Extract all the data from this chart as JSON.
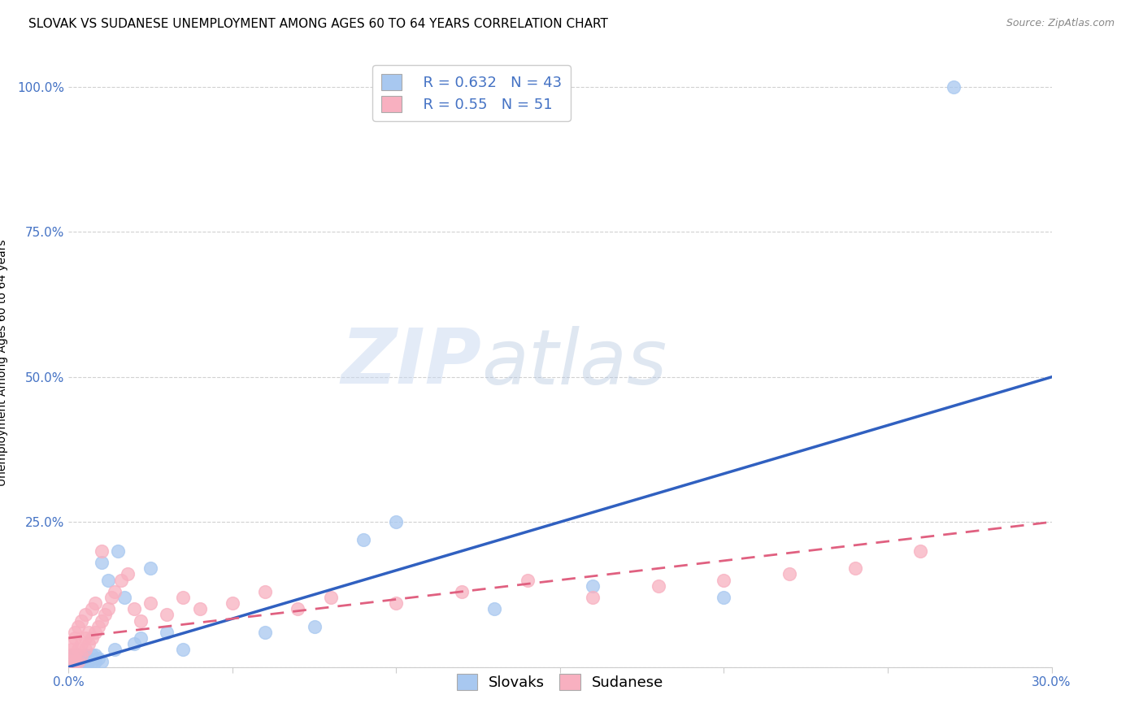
{
  "title": "SLOVAK VS SUDANESE UNEMPLOYMENT AMONG AGES 60 TO 64 YEARS CORRELATION CHART",
  "source": "Source: ZipAtlas.com",
  "ylabel": "Unemployment Among Ages 60 to 64 years",
  "xlim": [
    0.0,
    0.3
  ],
  "ylim": [
    0.0,
    1.05
  ],
  "slovak_R": 0.632,
  "slovak_N": 43,
  "sudanese_R": 0.55,
  "sudanese_N": 51,
  "slovak_color": "#A8C8F0",
  "slovak_line_color": "#3060C0",
  "sudanese_color": "#F8B0C0",
  "sudanese_line_color": "#E06080",
  "watermark_part1": "ZIP",
  "watermark_part2": "atlas",
  "background_color": "#FFFFFF",
  "slovak_line_x": [
    0.0,
    0.3
  ],
  "slovak_line_y": [
    0.0,
    0.5
  ],
  "sudanese_line_x": [
    0.0,
    0.3
  ],
  "sudanese_line_y": [
    0.05,
    0.25
  ],
  "slovak_scatter_x": [
    0.001,
    0.001,
    0.001,
    0.001,
    0.002,
    0.002,
    0.002,
    0.002,
    0.003,
    0.003,
    0.003,
    0.004,
    0.004,
    0.004,
    0.005,
    0.005,
    0.005,
    0.006,
    0.006,
    0.007,
    0.007,
    0.008,
    0.008,
    0.009,
    0.01,
    0.01,
    0.012,
    0.014,
    0.015,
    0.017,
    0.02,
    0.022,
    0.025,
    0.03,
    0.035,
    0.06,
    0.075,
    0.09,
    0.1,
    0.13,
    0.16,
    0.2,
    0.27
  ],
  "slovak_scatter_y": [
    0.005,
    0.01,
    0.015,
    0.02,
    0.005,
    0.01,
    0.015,
    0.02,
    0.005,
    0.01,
    0.02,
    0.005,
    0.015,
    0.02,
    0.005,
    0.01,
    0.02,
    0.01,
    0.015,
    0.01,
    0.02,
    0.01,
    0.02,
    0.015,
    0.01,
    0.18,
    0.15,
    0.03,
    0.2,
    0.12,
    0.04,
    0.05,
    0.17,
    0.06,
    0.03,
    0.06,
    0.07,
    0.22,
    0.25,
    0.1,
    0.14,
    0.12,
    1.0
  ],
  "sudanese_scatter_x": [
    0.001,
    0.001,
    0.001,
    0.001,
    0.002,
    0.002,
    0.002,
    0.002,
    0.003,
    0.003,
    0.003,
    0.004,
    0.004,
    0.004,
    0.005,
    0.005,
    0.005,
    0.006,
    0.006,
    0.007,
    0.007,
    0.008,
    0.008,
    0.009,
    0.01,
    0.01,
    0.011,
    0.012,
    0.013,
    0.014,
    0.016,
    0.018,
    0.02,
    0.022,
    0.025,
    0.03,
    0.035,
    0.04,
    0.05,
    0.06,
    0.07,
    0.08,
    0.1,
    0.12,
    0.14,
    0.16,
    0.18,
    0.2,
    0.22,
    0.24,
    0.26
  ],
  "sudanese_scatter_y": [
    0.01,
    0.02,
    0.03,
    0.04,
    0.01,
    0.02,
    0.05,
    0.06,
    0.01,
    0.03,
    0.07,
    0.02,
    0.04,
    0.08,
    0.03,
    0.05,
    0.09,
    0.04,
    0.06,
    0.05,
    0.1,
    0.06,
    0.11,
    0.07,
    0.08,
    0.2,
    0.09,
    0.1,
    0.12,
    0.13,
    0.15,
    0.16,
    0.1,
    0.08,
    0.11,
    0.09,
    0.12,
    0.1,
    0.11,
    0.13,
    0.1,
    0.12,
    0.11,
    0.13,
    0.15,
    0.12,
    0.14,
    0.15,
    0.16,
    0.17,
    0.2
  ],
  "grid_color": "#CCCCCC",
  "title_fontsize": 11,
  "axis_label_fontsize": 10,
  "tick_fontsize": 11,
  "legend_fontsize": 13
}
